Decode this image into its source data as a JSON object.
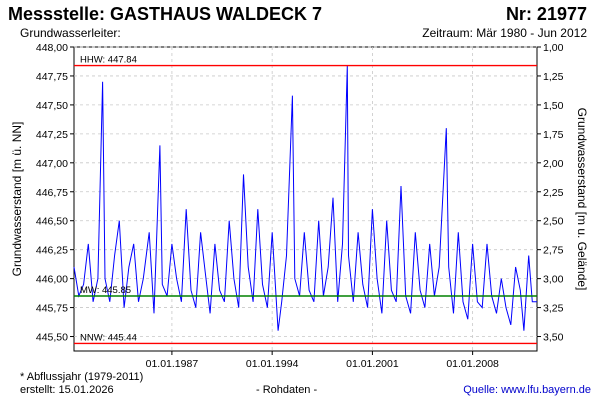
{
  "header": {
    "title": "Messstelle: GASTHAUS WALDECK 7",
    "nr": "Nr: 21977",
    "aquifer": "Grundwasserleiter:",
    "period": "Zeitraum: Mär 1980 - Jun 2012"
  },
  "footer": {
    "footnote": "* Abflussjahr (1979-2011)",
    "created": "erstellt:  15.01.2026",
    "rawdata": "- Rohdaten -",
    "source": "Quelle: www.lfu.bayern.de"
  },
  "colors": {
    "series": "#0000ff",
    "hhw": "#ff0000",
    "nnw": "#ff0000",
    "mw": "#008000",
    "grid": "#c8c8c8"
  },
  "chart_data": {
    "type": "line",
    "ylabel": "Grundwasserstand [m ü. NN]",
    "ylabel_right": "Grundwasserstand [m u. Gelände]",
    "ylim": [
      445.375,
      448.0
    ],
    "ylim_right": [
      3.625,
      1.0
    ],
    "xlim": [
      "1980-03-01",
      "2012-06-30"
    ],
    "grid": true,
    "y_ticks": [
      "448,00",
      "447,75",
      "447,50",
      "447,25",
      "447,00",
      "446,75",
      "446,50",
      "446,25",
      "446,00",
      "445,75",
      "445,50"
    ],
    "y_ticks_right": [
      "1,00",
      "1,25",
      "1,50",
      "1,75",
      "2,00",
      "2,25",
      "2,50",
      "2,75",
      "3,00",
      "3,25",
      "3,50"
    ],
    "x_ticks": [
      "01.01.1987",
      "01.01.1994",
      "01.01.2001",
      "01.01.2008"
    ],
    "reference_lines": [
      {
        "label": "HHW: 447.84",
        "value": 447.84
      },
      {
        "label": "MW: 445.85",
        "value": 445.85
      },
      {
        "label": "NNW: 445.44",
        "value": 445.44
      }
    ],
    "series": [
      {
        "points": [
          [
            "1980-03-01",
            446.1
          ],
          [
            "1980-07-01",
            445.85
          ],
          [
            "1980-11-01",
            445.95
          ],
          [
            "1981-03-01",
            446.3
          ],
          [
            "1981-07-01",
            445.8
          ],
          [
            "1981-11-01",
            446.0
          ],
          [
            "1982-03-01",
            447.7
          ],
          [
            "1982-05-01",
            446.0
          ],
          [
            "1982-09-01",
            445.8
          ],
          [
            "1983-01-01",
            446.2
          ],
          [
            "1983-05-01",
            446.5
          ],
          [
            "1983-09-01",
            445.75
          ],
          [
            "1984-01-01",
            446.1
          ],
          [
            "1984-05-01",
            446.3
          ],
          [
            "1984-09-01",
            445.8
          ],
          [
            "1985-01-01",
            446.0
          ],
          [
            "1985-06-01",
            446.4
          ],
          [
            "1985-10-01",
            445.7
          ],
          [
            "1986-03-01",
            447.15
          ],
          [
            "1986-05-01",
            445.95
          ],
          [
            "1986-09-01",
            445.85
          ],
          [
            "1987-01-01",
            446.3
          ],
          [
            "1987-05-01",
            446.0
          ],
          [
            "1987-09-01",
            445.8
          ],
          [
            "1988-01-01",
            446.6
          ],
          [
            "1988-05-01",
            445.9
          ],
          [
            "1988-09-01",
            445.75
          ],
          [
            "1989-01-01",
            446.4
          ],
          [
            "1989-05-01",
            446.05
          ],
          [
            "1989-09-01",
            445.7
          ],
          [
            "1990-01-01",
            446.3
          ],
          [
            "1990-05-01",
            445.9
          ],
          [
            "1990-09-01",
            445.8
          ],
          [
            "1991-01-01",
            446.5
          ],
          [
            "1991-05-01",
            446.0
          ],
          [
            "1991-09-01",
            445.75
          ],
          [
            "1992-01-01",
            446.9
          ],
          [
            "1992-05-01",
            446.1
          ],
          [
            "1992-09-01",
            445.8
          ],
          [
            "1993-01-01",
            446.6
          ],
          [
            "1993-05-01",
            445.95
          ],
          [
            "1993-09-01",
            445.75
          ],
          [
            "1994-01-01",
            446.4
          ],
          [
            "1994-06-01",
            445.55
          ],
          [
            "1994-09-01",
            445.8
          ],
          [
            "1995-01-01",
            446.2
          ],
          [
            "1995-06-01",
            447.58
          ],
          [
            "1995-08-01",
            446.0
          ],
          [
            "1995-12-01",
            445.85
          ],
          [
            "1996-04-01",
            446.4
          ],
          [
            "1996-08-01",
            445.9
          ],
          [
            "1996-12-01",
            445.8
          ],
          [
            "1997-04-01",
            446.5
          ],
          [
            "1997-08-01",
            445.85
          ],
          [
            "1997-12-01",
            446.1
          ],
          [
            "1998-04-01",
            446.7
          ],
          [
            "1998-08-01",
            445.8
          ],
          [
            "1998-12-01",
            446.3
          ],
          [
            "1999-04-01",
            447.84
          ],
          [
            "1999-05-01",
            446.2
          ],
          [
            "1999-09-01",
            445.8
          ],
          [
            "2000-01-01",
            446.4
          ],
          [
            "2000-05-01",
            445.95
          ],
          [
            "2000-09-01",
            445.75
          ],
          [
            "2001-01-01",
            446.6
          ],
          [
            "2001-05-01",
            446.0
          ],
          [
            "2001-09-01",
            445.7
          ],
          [
            "2002-01-01",
            446.5
          ],
          [
            "2002-05-01",
            445.9
          ],
          [
            "2002-09-01",
            445.8
          ],
          [
            "2003-01-01",
            446.8
          ],
          [
            "2003-05-01",
            445.85
          ],
          [
            "2003-09-01",
            445.7
          ],
          [
            "2004-01-01",
            446.4
          ],
          [
            "2004-05-01",
            445.9
          ],
          [
            "2004-09-01",
            445.75
          ],
          [
            "2005-01-01",
            446.3
          ],
          [
            "2005-05-01",
            445.85
          ],
          [
            "2005-09-01",
            446.1
          ],
          [
            "2006-03-01",
            447.3
          ],
          [
            "2006-05-01",
            446.1
          ],
          [
            "2006-09-01",
            445.7
          ],
          [
            "2007-01-01",
            446.4
          ],
          [
            "2007-05-01",
            445.8
          ],
          [
            "2007-09-01",
            445.65
          ],
          [
            "2008-01-01",
            446.3
          ],
          [
            "2008-05-01",
            445.8
          ],
          [
            "2008-09-01",
            445.75
          ],
          [
            "2009-01-01",
            446.3
          ],
          [
            "2009-05-01",
            445.85
          ],
          [
            "2009-09-01",
            445.7
          ],
          [
            "2010-01-01",
            446.0
          ],
          [
            "2010-05-01",
            445.75
          ],
          [
            "2010-09-01",
            445.6
          ],
          [
            "2011-01-01",
            446.1
          ],
          [
            "2011-05-01",
            445.9
          ],
          [
            "2011-08-01",
            445.55
          ],
          [
            "2011-12-01",
            446.2
          ],
          [
            "2012-03-01",
            445.8
          ],
          [
            "2012-06-30",
            445.8
          ]
        ]
      }
    ]
  }
}
